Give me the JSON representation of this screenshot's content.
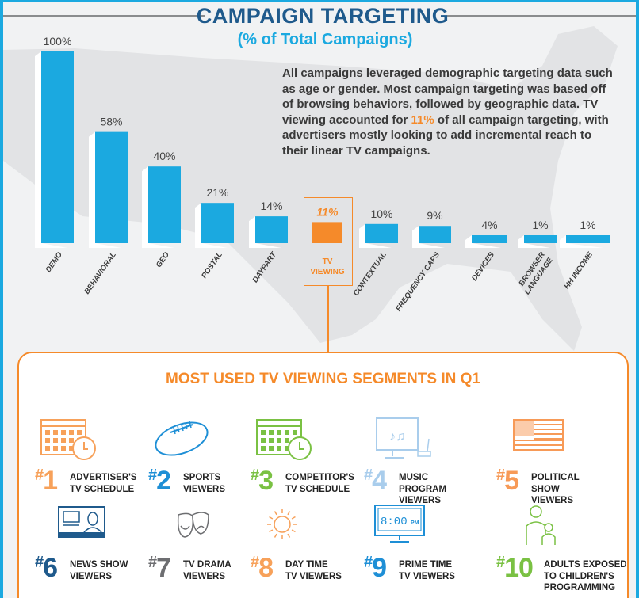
{
  "title": "CAMPAIGN TARGETING",
  "subtitle": "(% of Total Campaigns)",
  "paragraph": {
    "before": "All campaigns leveraged demographic targeting data such as age or gender. Most campaign targeting was based off of browsing behaviors, followed by geographic data. TV viewing accounted for ",
    "highlight": "11%",
    "after": " of all campaign targeting, with advertisers mostly looking to add incremental reach to their linear TV campaigns."
  },
  "colors": {
    "bar": "#1ba9e0",
    "highlight": "#f58a2a",
    "title": "#1f5a8c"
  },
  "chart_data": {
    "type": "bar",
    "title": "CAMPAIGN TARGETING",
    "subtitle": "(% of Total Campaigns)",
    "categories": [
      "DEMO",
      "BEHAVIORAL",
      "GEO",
      "POSTAL",
      "DAYPART",
      "TV VIEWING",
      "CONTEXTUAL",
      "FREQUENCY CAPS",
      "DEVICES",
      "BROWSER LANGUAGE",
      "HH INCOME"
    ],
    "values": [
      100,
      58,
      40,
      21,
      14,
      11,
      10,
      9,
      4,
      1,
      1
    ],
    "labels": [
      "100%",
      "58%",
      "40%",
      "21%",
      "14%",
      "11%",
      "10%",
      "9%",
      "4%",
      "1%",
      "1%"
    ],
    "highlighted": "TV VIEWING",
    "ylim": [
      0,
      100
    ],
    "grid": false
  },
  "panel": {
    "title": "MOST USED TV VIEWING SEGMENTS IN Q1",
    "segments": [
      {
        "rank": "1",
        "lines": [
          "ADVERTISER'S",
          "TV SCHEDULE"
        ],
        "color": "#f7a15a",
        "icon": "calendar-clock-icon"
      },
      {
        "rank": "2",
        "lines": [
          "SPORTS",
          "VIEWERS"
        ],
        "color": "#1e8fd6",
        "icon": "football-icon"
      },
      {
        "rank": "3",
        "lines": [
          "COMPETITOR'S",
          "TV SCHEDULE"
        ],
        "color": "#7ac143",
        "icon": "calendar-clock-icon"
      },
      {
        "rank": "4",
        "lines": [
          "MUSIC",
          "PROGRAM",
          "VIEWERS"
        ],
        "color": "#a9cdec",
        "icon": "music-tv-icon"
      },
      {
        "rank": "5",
        "lines": [
          "POLITICAL",
          "SHOW",
          "VIEWERS"
        ],
        "color": "#f79a57",
        "icon": "flag-icon"
      },
      {
        "rank": "6",
        "lines": [
          "NEWS SHOW",
          "VIEWERS"
        ],
        "color": "#1f5a8c",
        "icon": "news-anchor-icon"
      },
      {
        "rank": "7",
        "lines": [
          "TV DRAMA",
          "VIEWERS"
        ],
        "color": "#6d6e71",
        "icon": "theater-masks-icon"
      },
      {
        "rank": "8",
        "lines": [
          "DAY TIME",
          "TV VIEWERS"
        ],
        "color": "#f7a15a",
        "icon": "sun-icon"
      },
      {
        "rank": "9",
        "lines": [
          "PRIME TIME",
          "TV VIEWERS"
        ],
        "color": "#1e8fd6",
        "icon": "clock-tv-icon",
        "clock": "8:00",
        "clock_suffix": "PM"
      },
      {
        "rank": "10",
        "lines": [
          "ADULTS EXPOSED",
          "TO CHILDREN'S",
          "PROGRAMMING"
        ],
        "color": "#7ac143",
        "icon": "family-icon"
      }
    ]
  }
}
